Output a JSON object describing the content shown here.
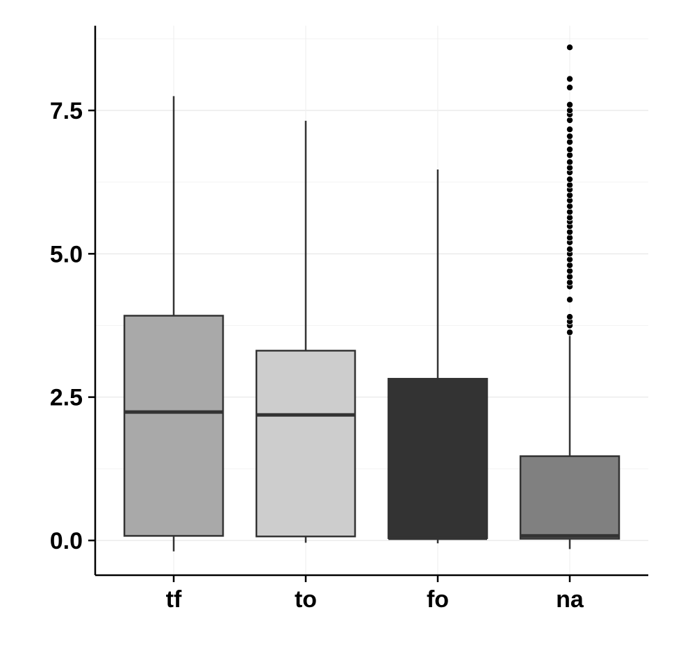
{
  "chart_data": {
    "type": "box",
    "title": "",
    "xlabel": "",
    "ylabel": "",
    "ylim": [
      -0.6,
      8.9
    ],
    "y_ticks": [
      "0.0",
      "2.5",
      "5.0",
      "7.5"
    ],
    "y_tick_values": [
      0,
      2.5,
      5.0,
      7.5
    ],
    "grid": true,
    "categories": [
      "tf",
      "to",
      "fo",
      "na"
    ],
    "boxes": [
      {
        "name": "tf",
        "whisker_low": -0.19,
        "q1": 0.08,
        "median": 2.24,
        "q3": 3.92,
        "whisker_high": 7.75,
        "fill": "#a9a9a9",
        "median_color": "#333333",
        "outliers": []
      },
      {
        "name": "to",
        "whisker_low": -0.04,
        "q1": 0.07,
        "median": 2.19,
        "q3": 3.31,
        "whisker_high": 7.32,
        "fill": "#cdcdcd",
        "median_color": "#333333",
        "outliers": []
      },
      {
        "name": "fo",
        "whisker_low": -0.05,
        "q1": 0.04,
        "median": 0.04,
        "q3": 2.82,
        "whisker_high": 6.47,
        "fill": "#333333",
        "median_color": "#333333",
        "outliers": []
      },
      {
        "name": "na",
        "whisker_low": -0.15,
        "q1": 0.03,
        "median": 0.08,
        "q3": 1.47,
        "whisker_high": 3.57,
        "fill": "#808080",
        "median_color": "#333333",
        "outliers": [
          3.63,
          3.75,
          3.82,
          3.9,
          4.2,
          4.43,
          4.5,
          4.6,
          4.7,
          4.8,
          4.9,
          5.0,
          5.08,
          5.2,
          5.28,
          5.38,
          5.48,
          5.56,
          5.63,
          5.73,
          5.83,
          5.93,
          6.02,
          6.12,
          6.2,
          6.3,
          6.42,
          6.5,
          6.6,
          6.72,
          6.82,
          6.95,
          7.05,
          7.17,
          7.33,
          7.43,
          7.5,
          7.6,
          7.9,
          8.05,
          8.6
        ]
      }
    ]
  },
  "colors": {
    "axis": "#000000",
    "grid": "#ebebeb",
    "line": "#333333",
    "outlier": "#000000",
    "background": "#ffffff"
  }
}
